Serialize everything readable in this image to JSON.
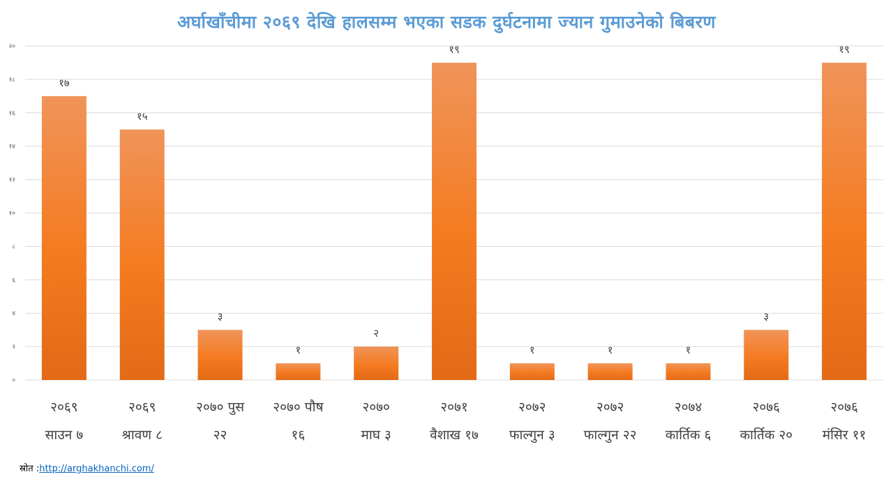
{
  "chart_data": {
    "type": "bar",
    "title": "अर्घाखाँचीमा २०६९ देखि हालसम्म भएका सडक दुर्घटनामा ज्यान गुमाउनेको बिबरण",
    "categories": [
      [
        "२०६९",
        "साउन ७"
      ],
      [
        "२०६९",
        "श्रावण ८"
      ],
      [
        "२०७० पुस",
        "२२"
      ],
      [
        "२०७० पौष",
        "१६"
      ],
      [
        "२०७०",
        "माघ ३"
      ],
      [
        "२०७१",
        "वैशाख १७"
      ],
      [
        "२०७२",
        "फाल्गुन ३"
      ],
      [
        "२०७२",
        "फाल्गुन २२"
      ],
      [
        "२०७४",
        "कार्तिक ६"
      ],
      [
        "२०७६",
        "कार्तिक २०"
      ],
      [
        "२०७६",
        "मंसिर ११"
      ]
    ],
    "values": [
      17,
      15,
      3,
      1,
      2,
      19,
      1,
      1,
      1,
      3,
      19
    ],
    "data_labels": [
      "१७",
      "१५",
      "३",
      "१",
      "२",
      "१९",
      "१",
      "१",
      "१",
      "३",
      "१९"
    ],
    "ylim": [
      0,
      20
    ],
    "y_ticks": [
      0,
      2,
      4,
      6,
      8,
      10,
      12,
      14,
      16,
      18,
      20
    ],
    "y_tick_labels": [
      "०",
      "२",
      "४",
      "६",
      "८",
      "१०",
      "१२",
      "१४",
      "१६",
      "१८",
      "२०"
    ],
    "xlabel": "",
    "ylabel": "",
    "grid": true,
    "legend": "none",
    "colors": {
      "bar_top": "#f0945a",
      "bar_mid": "#f47b20",
      "bar_bottom": "#e36a17",
      "title": "#5b9bd5",
      "grid": "#d9d9d9"
    }
  },
  "source": {
    "label": "स्रोत :",
    "link_text": "http://arghakhanchi.com/"
  }
}
